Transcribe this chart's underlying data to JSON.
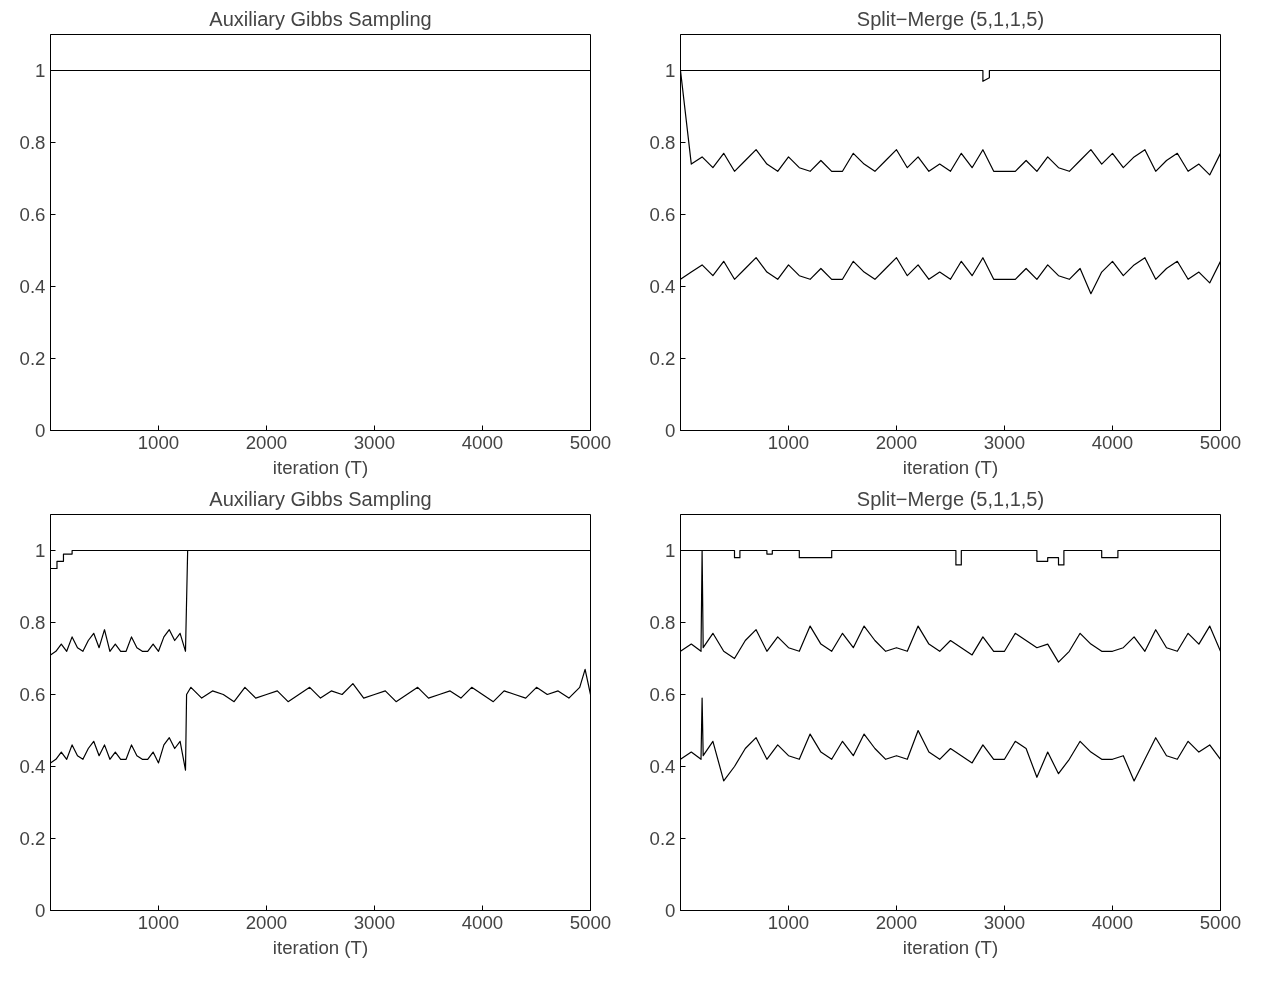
{
  "chart_data": [
    {
      "type": "line",
      "title": "Auxiliary Gibbs Sampling",
      "xlabel": "iteration (T)",
      "xlim": [
        0,
        5000
      ],
      "ylim": [
        0,
        1.1
      ],
      "xticks": [
        1000,
        2000,
        3000,
        4000,
        5000
      ],
      "yticks": [
        0,
        0.2,
        0.4,
        0.6,
        0.8,
        1
      ],
      "grid": false,
      "marker": "none",
      "line_style": "solid",
      "series": [
        {
          "color": "#000000",
          "x": [
            0,
            5000
          ],
          "values": [
            1,
            1
          ]
        }
      ]
    },
    {
      "type": "line",
      "title": "Split−Merge (5,1,1,5)",
      "xlabel": "iteration (T)",
      "xlim": [
        0,
        5000
      ],
      "ylim": [
        0,
        1.1
      ],
      "xticks": [
        1000,
        2000,
        3000,
        4000,
        5000
      ],
      "yticks": [
        0,
        0.2,
        0.4,
        0.6,
        0.8,
        1
      ],
      "grid": false,
      "marker": "none",
      "line_style": "solid",
      "series": [
        {
          "color": "#000000",
          "x": [
            0,
            2800,
            2800,
            2860,
            2860,
            5000
          ],
          "values": [
            1,
            1,
            0.97,
            0.98,
            1,
            1
          ]
        },
        {
          "color": "#000000",
          "x": [
            0,
            100,
            200,
            300,
            400,
            500,
            600,
            700,
            800,
            900,
            1000,
            1100,
            1200,
            1300,
            1400,
            1500,
            1600,
            1700,
            1800,
            1900,
            2000,
            2100,
            2200,
            2300,
            2400,
            2500,
            2600,
            2700,
            2800,
            2900,
            3000,
            3100,
            3200,
            3300,
            3400,
            3500,
            3600,
            3700,
            3800,
            3900,
            4000,
            4100,
            4200,
            4300,
            4400,
            4500,
            4600,
            4700,
            4800,
            4900,
            5000
          ],
          "values": [
            1,
            0.74,
            0.76,
            0.73,
            0.77,
            0.72,
            0.75,
            0.78,
            0.74,
            0.72,
            0.76,
            0.73,
            0.72,
            0.75,
            0.72,
            0.72,
            0.77,
            0.74,
            0.72,
            0.75,
            0.78,
            0.73,
            0.76,
            0.72,
            0.74,
            0.72,
            0.77,
            0.73,
            0.78,
            0.72,
            0.72,
            0.72,
            0.75,
            0.72,
            0.76,
            0.73,
            0.72,
            0.75,
            0.78,
            0.74,
            0.77,
            0.73,
            0.76,
            0.78,
            0.72,
            0.75,
            0.77,
            0.72,
            0.74,
            0.71,
            0.77
          ]
        },
        {
          "color": "#000000",
          "x": [
            0,
            100,
            200,
            300,
            400,
            500,
            600,
            700,
            800,
            900,
            1000,
            1100,
            1200,
            1300,
            1400,
            1500,
            1600,
            1700,
            1800,
            1900,
            2000,
            2100,
            2200,
            2300,
            2400,
            2500,
            2600,
            2700,
            2800,
            2900,
            3000,
            3100,
            3200,
            3300,
            3400,
            3500,
            3600,
            3700,
            3800,
            3900,
            4000,
            4100,
            4200,
            4300,
            4400,
            4500,
            4600,
            4700,
            4800,
            4900,
            5000
          ],
          "values": [
            0.42,
            0.44,
            0.46,
            0.43,
            0.47,
            0.42,
            0.45,
            0.48,
            0.44,
            0.42,
            0.46,
            0.43,
            0.42,
            0.45,
            0.42,
            0.42,
            0.47,
            0.44,
            0.42,
            0.45,
            0.48,
            0.43,
            0.46,
            0.42,
            0.44,
            0.42,
            0.47,
            0.43,
            0.48,
            0.42,
            0.42,
            0.42,
            0.45,
            0.42,
            0.46,
            0.43,
            0.42,
            0.45,
            0.38,
            0.44,
            0.47,
            0.43,
            0.46,
            0.48,
            0.42,
            0.45,
            0.47,
            0.42,
            0.44,
            0.41,
            0.47
          ]
        }
      ]
    },
    {
      "type": "line",
      "title": "Auxiliary Gibbs Sampling",
      "xlabel": "iteration (T)",
      "xlim": [
        0,
        5000
      ],
      "ylim": [
        0,
        1.1
      ],
      "xticks": [
        1000,
        2000,
        3000,
        4000,
        5000
      ],
      "yticks": [
        0,
        0.2,
        0.4,
        0.6,
        0.8,
        1
      ],
      "grid": false,
      "marker": "none",
      "line_style": "solid",
      "series": [
        {
          "color": "#000000",
          "x": [
            0,
            60,
            60,
            120,
            120,
            200,
            200,
            5000
          ],
          "values": [
            0.95,
            0.95,
            0.97,
            0.97,
            0.99,
            0.99,
            1,
            1
          ]
        },
        {
          "color": "#000000",
          "x": [
            0,
            50,
            100,
            150,
            200,
            250,
            300,
            350,
            400,
            450,
            500,
            550,
            600,
            650,
            700,
            750,
            800,
            850,
            900,
            950,
            1000,
            1050,
            1100,
            1150,
            1200,
            1250,
            1270,
            5000
          ],
          "values": [
            0.71,
            0.72,
            0.74,
            0.72,
            0.76,
            0.73,
            0.72,
            0.75,
            0.77,
            0.73,
            0.78,
            0.72,
            0.74,
            0.72,
            0.72,
            0.76,
            0.73,
            0.72,
            0.72,
            0.74,
            0.72,
            0.76,
            0.78,
            0.75,
            0.77,
            0.72,
            1,
            1
          ]
        },
        {
          "color": "#000000",
          "x": [
            0,
            50,
            100,
            150,
            200,
            250,
            300,
            350,
            400,
            450,
            500,
            550,
            600,
            650,
            700,
            750,
            800,
            850,
            900,
            950,
            1000,
            1050,
            1100,
            1150,
            1200,
            1250,
            1260,
            1300,
            1400,
            1500,
            1600,
            1700,
            1800,
            1900,
            2000,
            2100,
            2200,
            2300,
            2400,
            2500,
            2600,
            2700,
            2800,
            2900,
            3000,
            3100,
            3200,
            3300,
            3400,
            3500,
            3600,
            3700,
            3800,
            3900,
            4000,
            4100,
            4200,
            4300,
            4400,
            4500,
            4600,
            4700,
            4800,
            4900,
            4950,
            5000
          ],
          "values": [
            0.41,
            0.42,
            0.44,
            0.42,
            0.46,
            0.43,
            0.42,
            0.45,
            0.47,
            0.43,
            0.46,
            0.42,
            0.44,
            0.42,
            0.42,
            0.46,
            0.43,
            0.42,
            0.42,
            0.44,
            0.41,
            0.46,
            0.48,
            0.45,
            0.47,
            0.39,
            0.6,
            0.62,
            0.59,
            0.61,
            0.6,
            0.58,
            0.62,
            0.59,
            0.6,
            0.61,
            0.58,
            0.6,
            0.62,
            0.59,
            0.61,
            0.6,
            0.63,
            0.59,
            0.6,
            0.61,
            0.58,
            0.6,
            0.62,
            0.59,
            0.6,
            0.61,
            0.59,
            0.62,
            0.6,
            0.58,
            0.61,
            0.6,
            0.59,
            0.62,
            0.6,
            0.61,
            0.59,
            0.62,
            0.67,
            0.6
          ]
        }
      ]
    },
    {
      "type": "line",
      "title": "Split−Merge (5,1,1,5)",
      "xlabel": "iteration (T)",
      "xlim": [
        0,
        5000
      ],
      "ylim": [
        0,
        1.1
      ],
      "xticks": [
        1000,
        2000,
        3000,
        4000,
        5000
      ],
      "yticks": [
        0,
        0.2,
        0.4,
        0.6,
        0.8,
        1
      ],
      "grid": false,
      "marker": "none",
      "line_style": "solid",
      "series": [
        {
          "color": "#000000",
          "x": [
            0,
            500,
            500,
            550,
            550,
            800,
            800,
            850,
            850,
            1100,
            1100,
            1400,
            1400,
            2550,
            2550,
            2600,
            2600,
            3300,
            3300,
            3400,
            3400,
            3500,
            3500,
            3550,
            3550,
            3900,
            3900,
            4050,
            4050,
            5000
          ],
          "values": [
            1,
            1,
            0.98,
            0.98,
            1,
            1,
            0.99,
            0.99,
            1,
            1,
            0.98,
            0.98,
            1,
            1,
            0.96,
            0.96,
            1,
            1,
            0.97,
            0.97,
            0.98,
            0.98,
            0.96,
            0.96,
            1,
            1,
            0.98,
            0.98,
            1,
            1
          ]
        },
        {
          "color": "#000000",
          "x": [
            0,
            100,
            190,
            200,
            210,
            300,
            400,
            500,
            600,
            700,
            800,
            900,
            1000,
            1100,
            1200,
            1300,
            1400,
            1500,
            1600,
            1700,
            1800,
            1900,
            2000,
            2100,
            2200,
            2300,
            2400,
            2500,
            2600,
            2700,
            2800,
            2900,
            3000,
            3100,
            3200,
            3300,
            3400,
            3500,
            3600,
            3700,
            3800,
            3900,
            4000,
            4100,
            4200,
            4300,
            4400,
            4500,
            4600,
            4700,
            4800,
            4900,
            5000
          ],
          "values": [
            0.72,
            0.74,
            0.72,
            1,
            0.73,
            0.77,
            0.72,
            0.7,
            0.75,
            0.78,
            0.72,
            0.76,
            0.73,
            0.72,
            0.79,
            0.74,
            0.72,
            0.77,
            0.73,
            0.79,
            0.75,
            0.72,
            0.73,
            0.72,
            0.79,
            0.74,
            0.72,
            0.75,
            0.73,
            0.71,
            0.76,
            0.72,
            0.72,
            0.77,
            0.75,
            0.73,
            0.74,
            0.69,
            0.72,
            0.77,
            0.74,
            0.72,
            0.72,
            0.73,
            0.76,
            0.72,
            0.78,
            0.73,
            0.72,
            0.77,
            0.74,
            0.79,
            0.72
          ]
        },
        {
          "color": "#000000",
          "x": [
            0,
            100,
            190,
            200,
            210,
            300,
            400,
            500,
            600,
            700,
            800,
            900,
            1000,
            1100,
            1200,
            1300,
            1400,
            1500,
            1600,
            1700,
            1800,
            1900,
            2000,
            2100,
            2200,
            2300,
            2400,
            2500,
            2600,
            2700,
            2800,
            2900,
            3000,
            3100,
            3200,
            3300,
            3400,
            3500,
            3600,
            3700,
            3800,
            3900,
            4000,
            4100,
            4200,
            4300,
            4400,
            4500,
            4600,
            4700,
            4800,
            4900,
            5000
          ],
          "values": [
            0.42,
            0.44,
            0.42,
            0.59,
            0.43,
            0.47,
            0.36,
            0.4,
            0.45,
            0.48,
            0.42,
            0.46,
            0.43,
            0.42,
            0.49,
            0.44,
            0.42,
            0.47,
            0.43,
            0.49,
            0.45,
            0.42,
            0.43,
            0.42,
            0.5,
            0.44,
            0.42,
            0.45,
            0.43,
            0.41,
            0.46,
            0.42,
            0.42,
            0.47,
            0.45,
            0.37,
            0.44,
            0.38,
            0.42,
            0.47,
            0.44,
            0.42,
            0.42,
            0.43,
            0.36,
            0.42,
            0.48,
            0.43,
            0.42,
            0.47,
            0.44,
            0.46,
            0.42
          ]
        }
      ]
    }
  ]
}
